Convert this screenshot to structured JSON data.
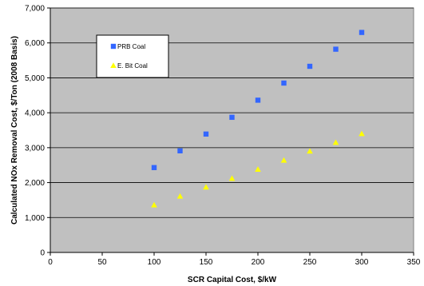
{
  "chart_data": {
    "type": "scatter",
    "title": "",
    "xlabel": "SCR Capital Cost, $/kW",
    "ylabel": "Calculated NOx Removal Cost, $/Ton (2008 Basis)",
    "xlim": [
      0,
      350
    ],
    "ylim": [
      0,
      7000
    ],
    "xticks": [
      0,
      50,
      100,
      150,
      200,
      250,
      300,
      350
    ],
    "yticks": [
      0,
      1000,
      2000,
      3000,
      4000,
      5000,
      6000,
      7000
    ],
    "ytick_labels": [
      "0",
      "1,000",
      "2,000",
      "3,000",
      "4,000",
      "5,000",
      "6,000",
      "7,000"
    ],
    "grid": "horizontal",
    "legend_position": "top-left",
    "plot_background": "#c0c0c0",
    "series": [
      {
        "name": "PRB Coal",
        "marker": "square",
        "color": "#3366ff",
        "x": [
          100,
          125,
          150,
          175,
          200,
          225,
          250,
          275,
          300
        ],
        "y": [
          2430,
          2910,
          3390,
          3870,
          4360,
          4850,
          5330,
          5820,
          6300
        ]
      },
      {
        "name": "E. Bit Coal",
        "marker": "triangle",
        "color": "#ffff00",
        "x": [
          100,
          125,
          150,
          175,
          200,
          225,
          250,
          275,
          300
        ],
        "y": [
          1360,
          1610,
          1870,
          2120,
          2380,
          2640,
          2900,
          3150,
          3400
        ]
      }
    ]
  }
}
